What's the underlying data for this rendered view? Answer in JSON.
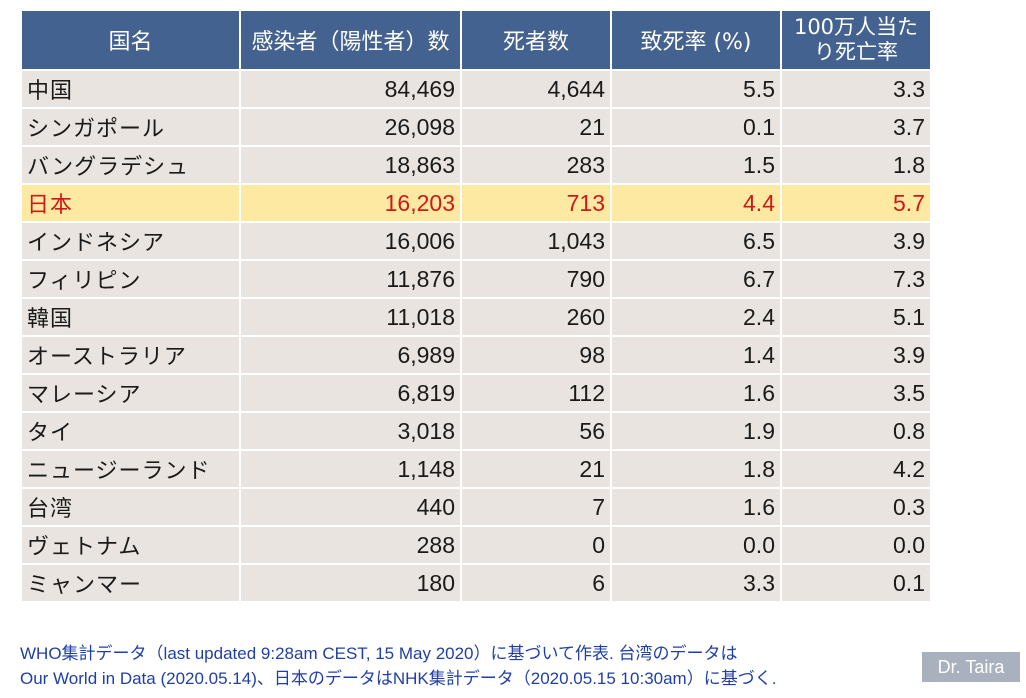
{
  "table": {
    "headers": [
      "国名",
      "感染者（陽性者）数",
      "死者数",
      "致死率 (%)",
      "100万人当たり死亡率"
    ],
    "highlight_color": "#fde9a2",
    "highlight_text_color": "#d01818",
    "header_color": "#44628f",
    "rows": [
      [
        "中国",
        "84,469",
        "4,644",
        "5.5",
        "3.3"
      ],
      [
        "シンガポール",
        "26,098",
        "21",
        "0.1",
        "3.7"
      ],
      [
        "バングラデシュ",
        "18,863",
        "283",
        "1.5",
        "1.8"
      ],
      [
        "日本",
        "16,203",
        "713",
        "4.4",
        "5.7"
      ],
      [
        "インドネシア",
        "16,006",
        "1,043",
        "6.5",
        "3.9"
      ],
      [
        "フィリピン",
        "11,876",
        "790",
        "6.7",
        "7.3"
      ],
      [
        "韓国",
        "11,018",
        "260",
        "2.4",
        "5.1"
      ],
      [
        "オーストラリア",
        "6,989",
        "98",
        "1.4",
        "3.9"
      ],
      [
        "マレーシア",
        "6,819",
        "112",
        "1.6",
        "3.5"
      ],
      [
        "タイ",
        "3,018",
        "56",
        "1.9",
        "0.8"
      ],
      [
        "ニュージーランド",
        "1,148",
        "21",
        "1.8",
        "4.2"
      ],
      [
        "台湾",
        "440",
        "7",
        "1.6",
        "0.3"
      ],
      [
        "ヴェトナム",
        "288",
        "0",
        "0.0",
        "0.0"
      ],
      [
        "ミャンマー",
        "180",
        "6",
        "3.3",
        "0.1"
      ]
    ]
  },
  "footnote": {
    "line1": "WHO集計データ（last updated 9:28am CEST, 15 May 2020）に基づいて作表. 台湾のデータは",
    "line2": "Our World in Data (2020.05.14)、日本のデータはNHK集計データ（2020.05.15 10:30am）に基づく."
  },
  "credit": "Dr. Taira"
}
